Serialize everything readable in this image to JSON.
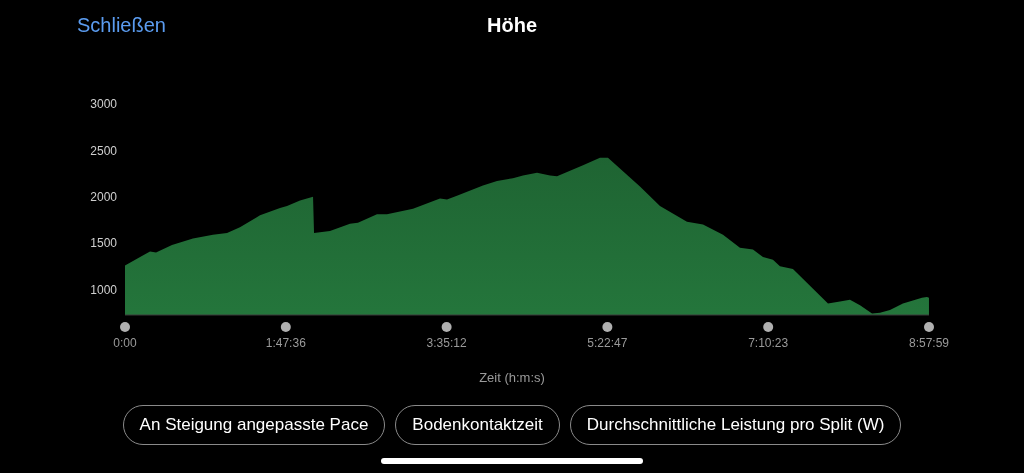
{
  "chart_data": {
    "type": "area",
    "title": "Höhe",
    "xlabel": "Zeit (h:m:s)",
    "annotations": [
      "Schließen",
      "An Steigung angepasste Pace",
      "Bodenkontaktzeit",
      "Durchschnittliche Leistung pro Split (W)"
    ],
    "x": [
      0,
      0.279,
      0.346,
      0.524,
      0.758,
      0.981,
      1.138,
      1.282,
      1.506,
      1.729,
      1.807,
      1.952,
      2.097,
      2.108,
      2.286,
      2.509,
      2.598,
      2.81,
      2.922,
      3.212,
      3.513,
      3.591,
      3.702,
      3.992,
      4.149,
      4.327,
      4.438,
      4.595,
      4.74,
      4.818,
      5.108,
      5.297,
      5.386,
      5.743,
      5.966,
      6.267,
      6.446,
      6.669,
      6.858,
      7.003,
      7.115,
      7.226,
      7.304,
      7.449,
      7.84,
      7.974,
      8.085,
      8.197,
      8.331,
      8.42,
      8.531,
      8.676,
      8.888,
      8.944,
      8.966
    ],
    "series": [
      {
        "color": "#3cc463",
        "values": [
          1260,
          1410,
          1400,
          1480,
          1550,
          1590,
          1610,
          1670,
          1800,
          1880,
          1900,
          1960,
          2000,
          1610,
          1630,
          1710,
          1720,
          1810,
          1810,
          1870,
          1980,
          1970,
          2010,
          2120,
          2170,
          2200,
          2230,
          2260,
          2230,
          2220,
          2340,
          2420,
          2420,
          2110,
          1900,
          1730,
          1700,
          1590,
          1450,
          1430,
          1350,
          1320,
          1250,
          1220,
          850,
          870,
          890,
          830,
          740,
          750,
          780,
          850,
          910,
          920,
          910
        ]
      }
    ],
    "xlim": [
      0,
      8.96639
    ],
    "xticks": [
      {
        "value": 0,
        "label": "0:00"
      },
      {
        "value": 1.79333,
        "label": "1:47:36"
      },
      {
        "value": 3.58667,
        "label": "3:35:12"
      },
      {
        "value": 5.37972,
        "label": "5:22:47"
      },
      {
        "value": 7.17306,
        "label": "7:10:23"
      },
      {
        "value": 8.96639,
        "label": "8:57:59"
      }
    ],
    "ylim": [
      725,
      3000
    ],
    "yticks": [
      1000,
      1500,
      2000,
      2500,
      3000
    ],
    "grid": false,
    "legend": false
  }
}
